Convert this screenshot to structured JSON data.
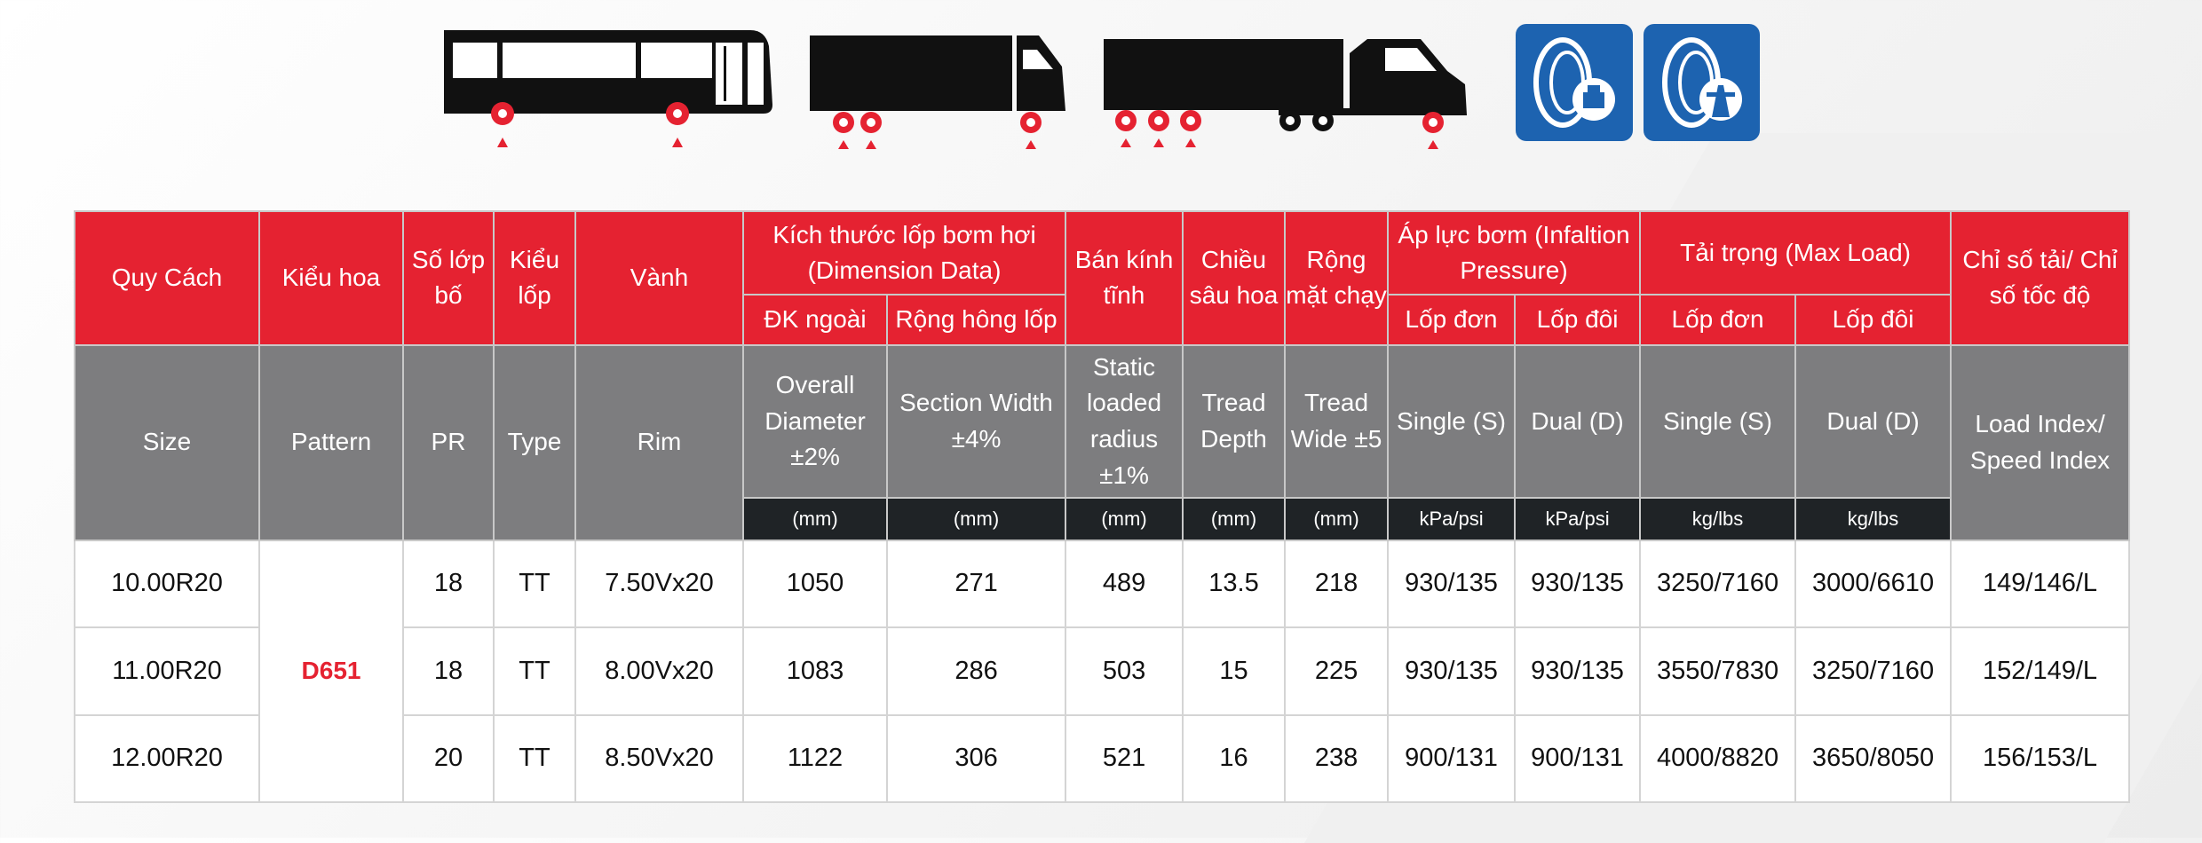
{
  "header_vn": {
    "size": "Quy Cách",
    "pattern": "Kiểu hoa",
    "pr": "Số lớp bố",
    "type": "Kiểu lốp",
    "rim": "Vành",
    "dimension": "Kích thước lốp bơm hơi (Dimension Data)",
    "outer_dia": "ĐK ngoài",
    "section_width": "Rộng hông lốp",
    "static_radius": "Bán kính tĩnh",
    "tread_depth": "Chiều sâu hoa",
    "tread_wide": "Rộng mặt chạy",
    "pressure": "Áp lực bơm (Infaltion Pressure)",
    "pressure_single": "Lốp đơn",
    "pressure_dual": "Lốp đôi",
    "load": "Tải trọng (Max Load)",
    "load_single": "Lốp đơn",
    "load_dual": "Lốp đôi",
    "load_speed": "Chỉ số tải/ Chỉ số tốc độ"
  },
  "header_en": {
    "size": "Size",
    "pattern": "Pattern",
    "pr": "PR",
    "type": "Type",
    "rim": "Rim",
    "outer_dia": "Overall Diameter ±2%",
    "section_width": "Section Width ±4%",
    "static_radius": "Static loaded radius ±1%",
    "tread_depth": "Tread Depth",
    "tread_wide": "Tread Wide ±5",
    "pressure_single": "Single (S)",
    "pressure_dual": "Dual (D)",
    "load_single": "Single (S)",
    "load_dual": "Dual (D)",
    "load_speed": "Load Index/ Speed Index"
  },
  "units": {
    "outer_dia": "(mm)",
    "section_width": "(mm)",
    "static_radius": "(mm)",
    "tread_depth": "(mm)",
    "tread_wide": "(mm)",
    "pressure_single": "kPa/psi",
    "pressure_dual": "kPa/psi",
    "load_single": "kg/lbs",
    "load_dual": "kg/lbs"
  },
  "pattern_value": "D651",
  "rows": [
    {
      "size": "10.00R20",
      "pr": "18",
      "type": "TT",
      "rim": "7.50Vx20",
      "od": "1050",
      "sw": "271",
      "slr": "489",
      "td": "13.5",
      "tw": "218",
      "ps": "930/135",
      "pd": "930/135",
      "ls": "3250/7160",
      "ld": "3000/6610",
      "li": "149/146/L"
    },
    {
      "size": "11.00R20",
      "pr": "18",
      "type": "TT",
      "rim": "8.00Vx20",
      "od": "1083",
      "sw": "286",
      "slr": "503",
      "td": "15",
      "tw": "225",
      "ps": "930/135",
      "pd": "930/135",
      "ls": "3550/7830",
      "ld": "3250/7160",
      "li": "152/149/L"
    },
    {
      "size": "12.00R20",
      "pr": "20",
      "type": "TT",
      "rim": "8.50Vx20",
      "od": "1122",
      "sw": "306",
      "slr": "521",
      "td": "16",
      "tw": "238",
      "ps": "900/131",
      "pd": "900/131",
      "ls": "4000/8820",
      "ld": "3650/8050",
      "li": "156/153/L"
    }
  ],
  "colors": {
    "accent_red": "#e52231",
    "header_gray": "#7d7d7f",
    "unit_dark": "#1f2326",
    "badge_blue": "#1d63b0"
  },
  "icons": [
    "bus-icon",
    "box-truck-icon",
    "semi-trailer-truck-icon",
    "urban-road-tire-icon",
    "highway-tire-icon"
  ]
}
